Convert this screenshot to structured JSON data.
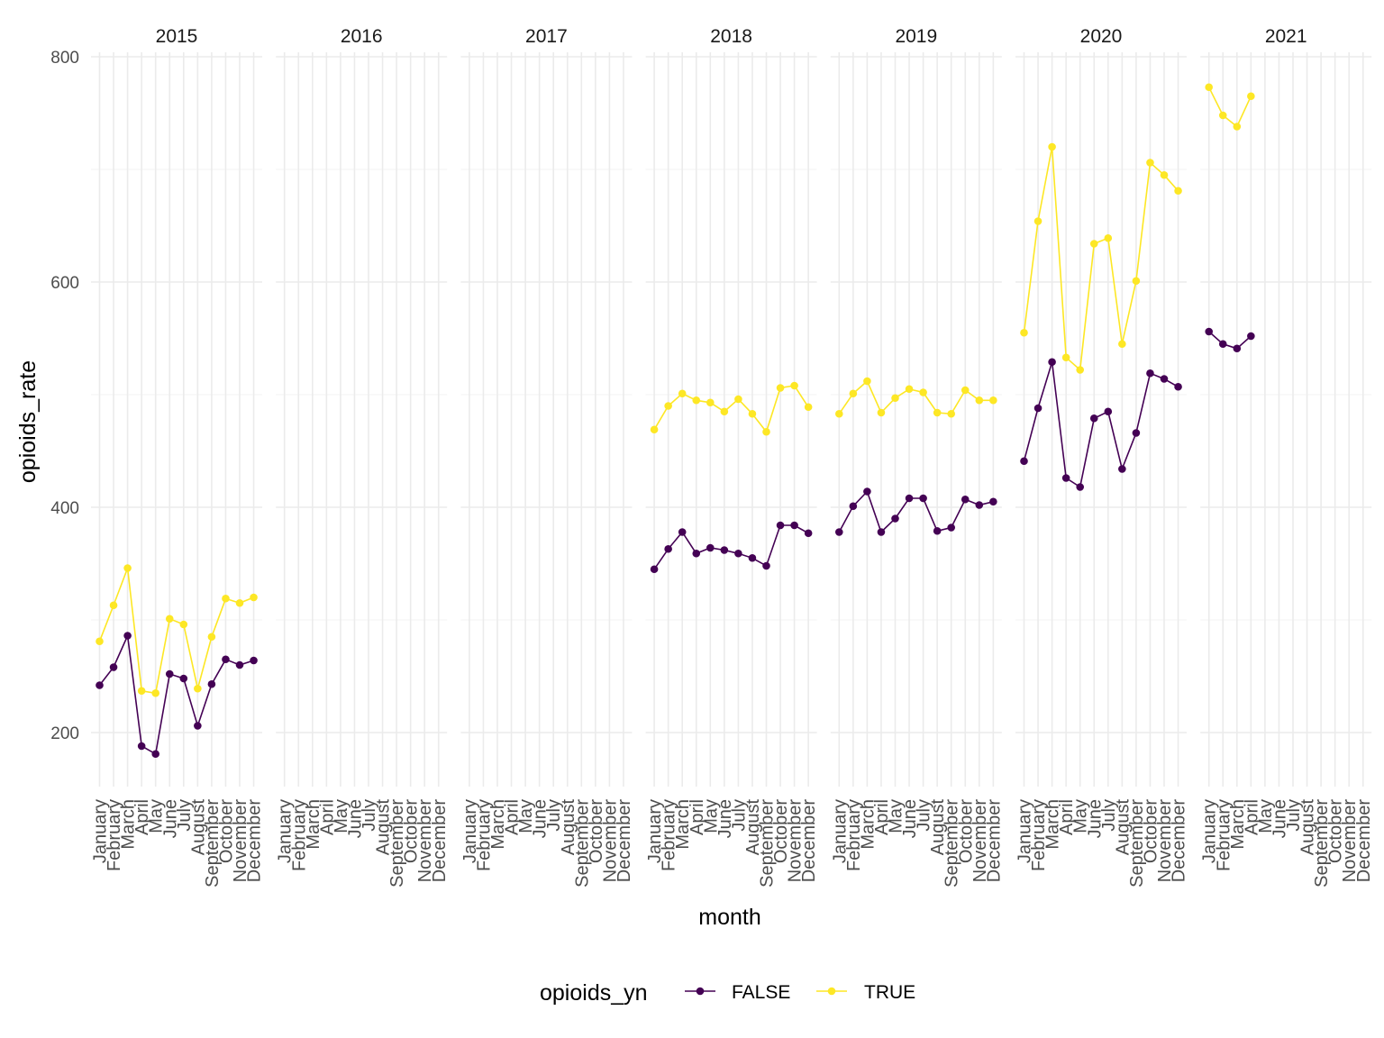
{
  "chart_data": {
    "type": "line",
    "facets": [
      "2015",
      "2016",
      "2017",
      "2018",
      "2019",
      "2020",
      "2021"
    ],
    "categories": [
      "January",
      "February",
      "March",
      "April",
      "May",
      "June",
      "July",
      "August",
      "September",
      "October",
      "November",
      "December"
    ],
    "xlabel": "month",
    "ylabel": "opioids_rate",
    "ylim": [
      150,
      800
    ],
    "yticks": [
      200,
      400,
      600,
      800
    ],
    "grid": true,
    "legend": {
      "title": "opioids_yn",
      "position": "bottom",
      "entries": [
        "FALSE",
        "TRUE"
      ]
    },
    "series": [
      {
        "name": "FALSE",
        "color": "#440154",
        "values": {
          "2015": [
            242,
            258,
            286,
            188,
            181,
            252,
            248,
            206,
            243,
            265,
            260,
            264
          ],
          "2016": [],
          "2017": [],
          "2018": [
            345,
            363,
            378,
            359,
            364,
            362,
            359,
            355,
            348,
            384,
            384,
            377
          ],
          "2019": [
            378,
            401,
            414,
            378,
            390,
            408,
            408,
            379,
            382,
            407,
            402,
            405
          ],
          "2020": [
            441,
            488,
            529,
            426,
            418,
            479,
            485,
            434,
            466,
            519,
            514,
            507
          ],
          "2021": [
            556,
            545,
            541,
            552
          ]
        }
      },
      {
        "name": "TRUE",
        "color": "#FDE725",
        "values": {
          "2015": [
            281,
            313,
            346,
            237,
            235,
            301,
            296,
            239,
            285,
            319,
            315,
            320
          ],
          "2016": [],
          "2017": [],
          "2018": [
            469,
            490,
            501,
            495,
            493,
            485,
            496,
            483,
            467,
            506,
            508,
            489
          ],
          "2019": [
            483,
            501,
            512,
            484,
            497,
            505,
            502,
            484,
            483,
            504,
            495,
            495
          ],
          "2020": [
            555,
            654,
            720,
            533,
            522,
            634,
            639,
            545,
            601,
            706,
            695,
            681
          ],
          "2021": [
            773,
            748,
            738,
            765
          ]
        }
      }
    ]
  }
}
